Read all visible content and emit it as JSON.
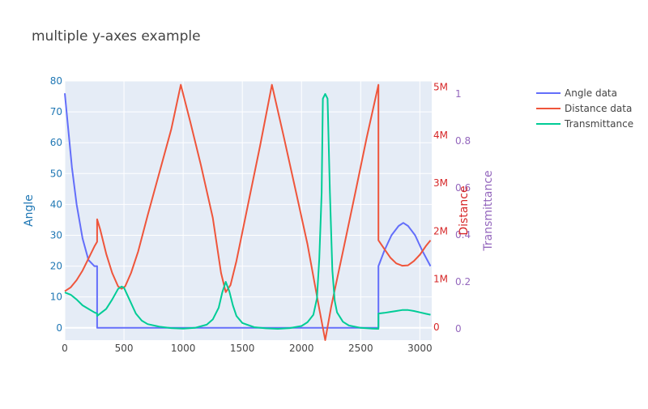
{
  "colors": {
    "angle": "#636efa",
    "distance": "#EF553B",
    "transmittance": "#00cc96",
    "angle_axis": "#1f77b4",
    "distance_axis": "#d62728",
    "transmittance_axis": "#9467bd",
    "plot_bg": "#e5ecf6",
    "grid": "#ffffff"
  },
  "chart_data": {
    "type": "line",
    "title": "multiple y-axes example",
    "xlabel": "",
    "xlim": [
      0,
      3100
    ],
    "x_ticks": [
      0,
      500,
      1000,
      1500,
      2000,
      2500,
      3000
    ],
    "x_tick_labels": [
      "0",
      "500",
      "1000",
      "1500",
      "2000",
      "2500",
      "3000"
    ],
    "legend_position": "top-right",
    "grid": true,
    "axes": {
      "y1": {
        "label": "Angle",
        "lim": [
          -4,
          80
        ],
        "ticks": [
          0,
          10,
          20,
          30,
          40,
          50,
          60,
          70,
          80
        ],
        "tick_labels": [
          "0",
          "10",
          "20",
          "30",
          "40",
          "50",
          "60",
          "70",
          "80"
        ]
      },
      "y2": {
        "label": "Distance",
        "lim": [
          0,
          5400000
        ],
        "ticks": [
          0,
          1000000,
          2000000,
          3000000,
          4000000,
          5000000
        ],
        "tick_labels": [
          "0",
          "1M",
          "2M",
          "3M",
          "4M",
          "5M"
        ]
      },
      "y3": {
        "label": "Transmittance",
        "lim": [
          0,
          1
        ],
        "ticks": [
          0,
          0.2,
          0.4,
          0.6,
          0.8,
          1
        ],
        "tick_labels": [
          "0",
          "0.2",
          "0.4",
          "0.6",
          "0.8",
          "1"
        ]
      }
    },
    "series": [
      {
        "name": "Angle data",
        "axis": "y1",
        "x": [
          0,
          30,
          60,
          100,
          150,
          200,
          250,
          273,
          273,
          400,
          800,
          1200,
          1600,
          2000,
          2400,
          2650,
          2650,
          2700,
          2760,
          2820,
          2860,
          2900,
          2960,
          3020,
          3090
        ],
        "y": [
          76,
          64,
          52,
          40,
          29,
          22,
          20,
          20,
          0,
          0,
          0,
          0,
          0,
          0,
          0,
          0,
          20,
          25,
          30,
          33,
          34,
          33,
          30,
          25,
          20
        ]
      },
      {
        "name": "Distance data",
        "axis": "y2",
        "x": [
          0,
          50,
          100,
          150,
          200,
          250,
          273,
          273,
          300,
          350,
          400,
          450,
          480,
          510,
          560,
          620,
          700,
          800,
          900,
          980,
          1060,
          1150,
          1250,
          1320,
          1360,
          1400,
          1450,
          1550,
          1650,
          1750,
          1850,
          1950,
          2050,
          2150,
          2200,
          2250,
          2350,
          2450,
          2550,
          2650,
          2650,
          2700,
          2750,
          2800,
          2850,
          2900,
          2950,
          3000,
          3050,
          3090
        ],
        "y": [
          1020000,
          1100000,
          1250000,
          1450000,
          1700000,
          1950000,
          2050000,
          2520000,
          2300000,
          1800000,
          1400000,
          1120000,
          1070000,
          1120000,
          1400000,
          1850000,
          2600000,
          3500000,
          4400000,
          5320000,
          4550000,
          3650000,
          2550000,
          1400000,
          1000000,
          1150000,
          1650000,
          2850000,
          4050000,
          5320000,
          4240000,
          3120000,
          2000000,
          650000,
          0,
          690000,
          1850000,
          3020000,
          4210000,
          5320000,
          2080000,
          1900000,
          1720000,
          1600000,
          1550000,
          1560000,
          1650000,
          1780000,
          1960000,
          2080000
        ]
      },
      {
        "name": "Transmittance",
        "axis": "y3",
        "x": [
          0,
          50,
          100,
          150,
          200,
          250,
          273,
          273,
          300,
          350,
          400,
          450,
          480,
          500,
          550,
          600,
          650,
          700,
          800,
          900,
          1000,
          1100,
          1200,
          1250,
          1300,
          1330,
          1360,
          1390,
          1420,
          1450,
          1500,
          1600,
          1700,
          1800,
          1900,
          2000,
          2050,
          2100,
          2130,
          2150,
          2170,
          2180,
          2200,
          2220,
          2240,
          2260,
          2280,
          2300,
          2350,
          2400,
          2500,
          2600,
          2650,
          2650,
          2700,
          2750,
          2800,
          2850,
          2900,
          2950,
          3000,
          3050,
          3090
        ],
        "y": [
          0.155,
          0.145,
          0.125,
          0.1,
          0.085,
          0.07,
          0.065,
          0.055,
          0.065,
          0.085,
          0.125,
          0.17,
          0.18,
          0.175,
          0.12,
          0.065,
          0.035,
          0.02,
          0.009,
          0.003,
          0.001,
          0.004,
          0.018,
          0.04,
          0.09,
          0.155,
          0.2,
          0.16,
          0.1,
          0.055,
          0.025,
          0.007,
          0.002,
          0.0,
          0.003,
          0.012,
          0.028,
          0.06,
          0.13,
          0.3,
          0.58,
          0.98,
          1.0,
          0.98,
          0.58,
          0.25,
          0.12,
          0.07,
          0.03,
          0.014,
          0.004,
          0.001,
          0.0,
          0.065,
          0.068,
          0.072,
          0.076,
          0.08,
          0.08,
          0.076,
          0.07,
          0.064,
          0.06
        ]
      }
    ]
  }
}
